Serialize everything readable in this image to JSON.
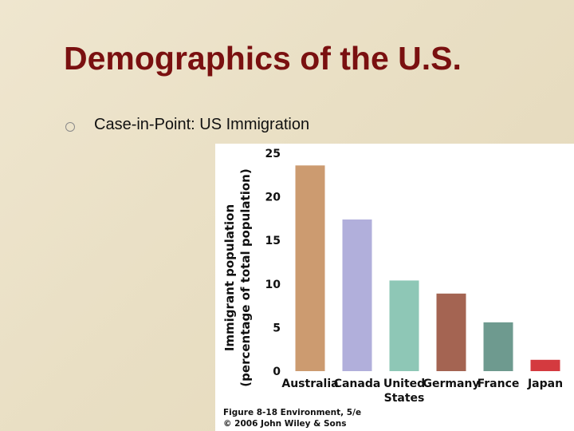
{
  "slide": {
    "title": "Demographics of the U.S.",
    "bullet": "Case-in-Point: US Immigration"
  },
  "figure_caption": {
    "line1": "Figure 8-18 Environment, 5/e",
    "line2": "© 2006 John Wiley & Sons"
  },
  "chart_data": {
    "type": "bar",
    "ylabel_line1": "Immigrant population",
    "ylabel_line2": "(percentage of total population)",
    "ylim": [
      0,
      25
    ],
    "yticks": [
      0,
      5,
      10,
      15,
      20,
      25
    ],
    "grid": false,
    "categories": [
      {
        "lines": [
          "Australia"
        ]
      },
      {
        "lines": [
          "Canada"
        ]
      },
      {
        "lines": [
          "United",
          "States"
        ]
      },
      {
        "lines": [
          "Germany"
        ]
      },
      {
        "lines": [
          "France"
        ]
      },
      {
        "lines": [
          "Japan"
        ]
      }
    ],
    "values": [
      23.6,
      17.4,
      10.4,
      8.9,
      5.6,
      1.3
    ],
    "colors": [
      "#cc9b70",
      "#b1afdb",
      "#8ec7b6",
      "#a46452",
      "#6e9a8f",
      "#d43a3f"
    ]
  }
}
